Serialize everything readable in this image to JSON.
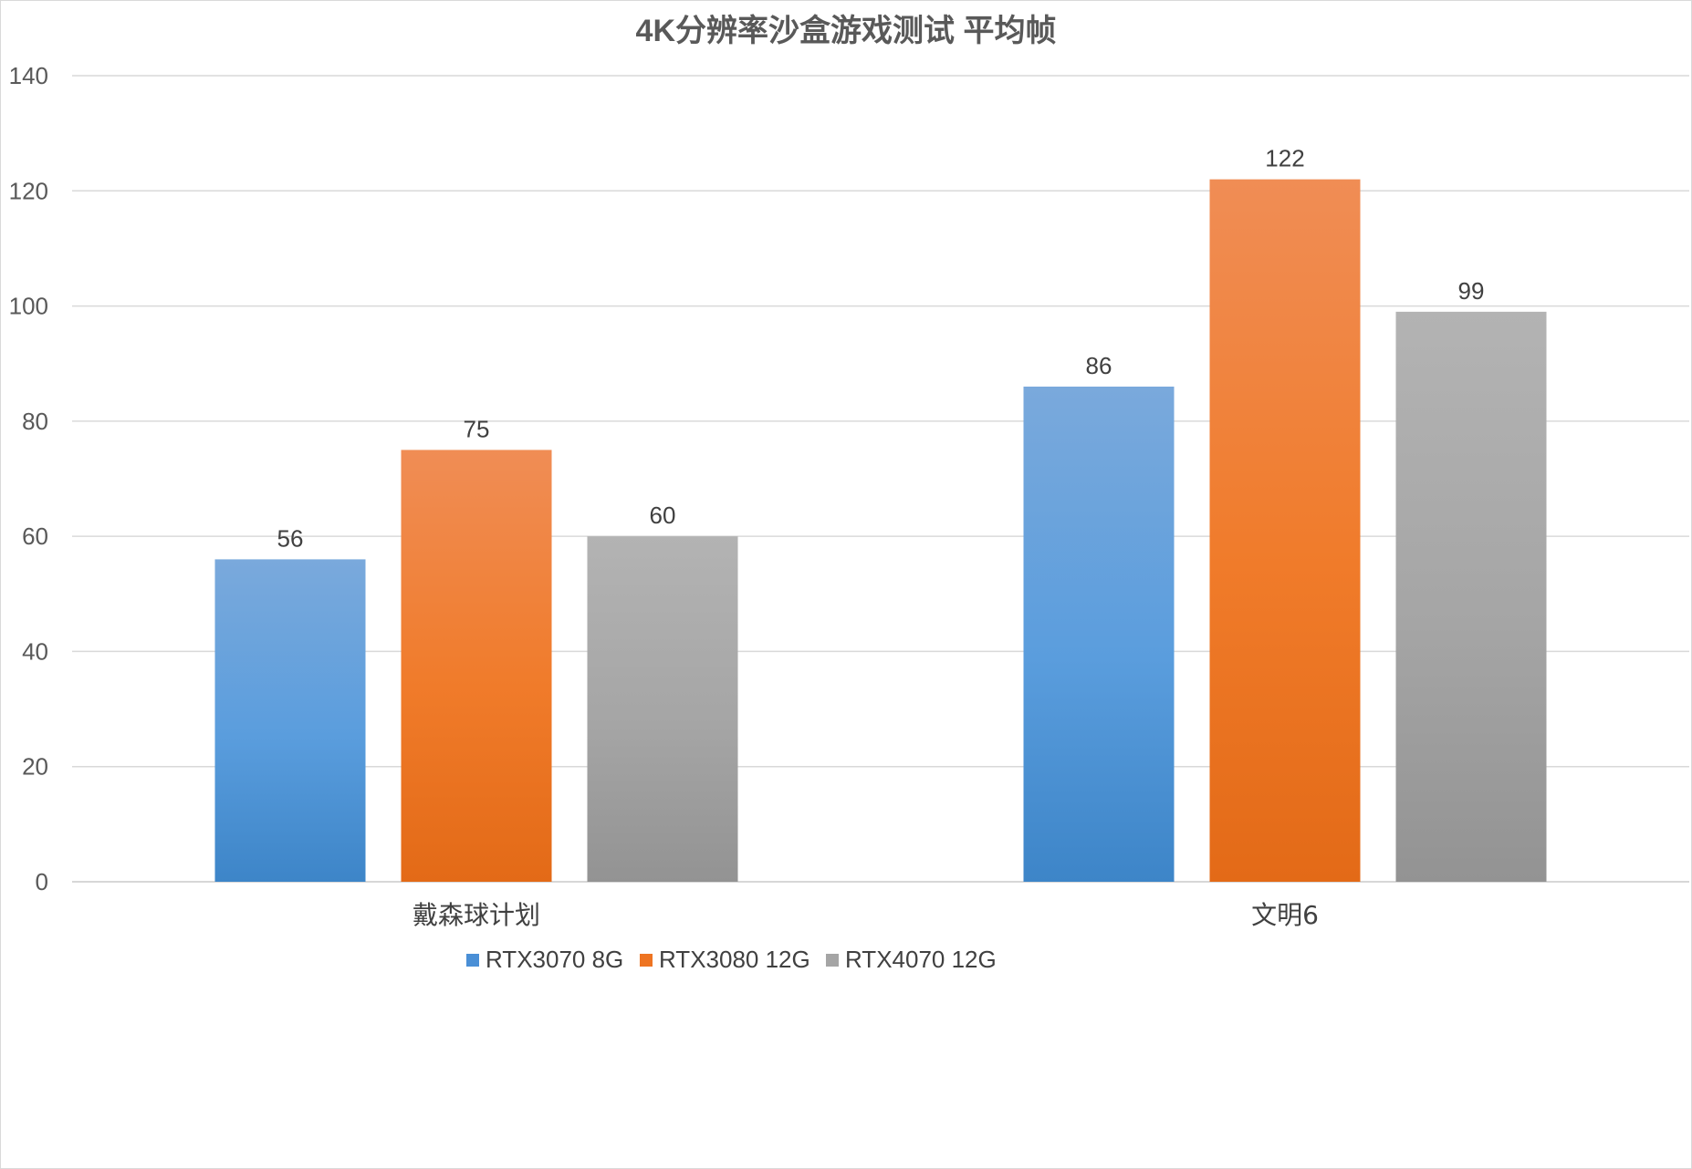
{
  "chart_data": {
    "type": "bar",
    "title": "4K分辨率沙盒游戏测试 平均帧",
    "categories": [
      "戴森球计划",
      "文明6"
    ],
    "series": [
      {
        "name": "RTX3070 8G",
        "values": [
          56,
          86
        ],
        "color": "#4a8fd6"
      },
      {
        "name": "RTX3080 12G",
        "values": [
          75,
          122
        ],
        "color": "#ee7422"
      },
      {
        "name": "RTX4070 12G",
        "values": [
          60,
          99
        ],
        "color": "#a5a5a5"
      }
    ],
    "ylim": [
      0,
      140
    ],
    "yticks": [
      0,
      20,
      40,
      60,
      80,
      100,
      120,
      140
    ],
    "grid": true,
    "legend": "bottom"
  }
}
